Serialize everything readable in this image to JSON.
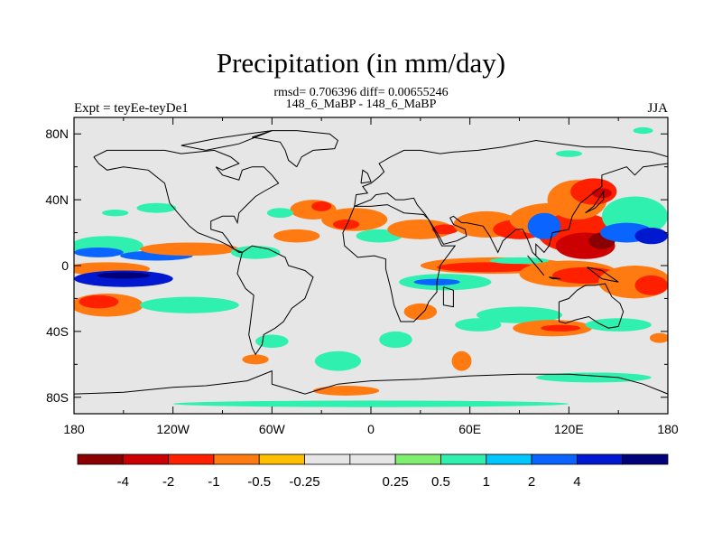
{
  "title": "Precipitation (in mm/day)",
  "stats_line": "rmsd= 0.706396 diff= 0.00655246",
  "comparison": "148_6_MaBP - 148_6_MaBP",
  "experiment": "Expt = teyEe-teyDe1",
  "season": "JJA",
  "map": {
    "lat_ticks": [
      "80N",
      "40N",
      "0",
      "40S",
      "80S"
    ],
    "lat_values": [
      80,
      40,
      0,
      -40,
      -80
    ],
    "lon_ticks": [
      "180",
      "120W",
      "60W",
      "0",
      "60E",
      "120E",
      "180"
    ],
    "lon_values": [
      -180,
      -120,
      -60,
      0,
      60,
      120,
      180
    ],
    "lat_range": [
      -90,
      90
    ],
    "lon_range": [
      -180,
      180
    ],
    "background_color": "#e6e6e6"
  },
  "colorbar": {
    "colors": [
      "#8b0000",
      "#cc0000",
      "#ff2000",
      "#ff7a10",
      "#ffbf00",
      "#e6e6e6",
      "#e6e6e6",
      "#80ee70",
      "#30f0b0",
      "#00c8ff",
      "#0a64ff",
      "#0018d0",
      "#00007a"
    ],
    "labels": [
      "-4",
      "-2",
      "-1",
      "-0.5",
      "-0.25",
      "0.25",
      "0.5",
      "1",
      "2",
      "4"
    ]
  },
  "anomaly_regions": [
    {
      "lon": -160,
      "lat": -2,
      "rx": 26,
      "ry": 4,
      "level": -0.5
    },
    {
      "lon": -160,
      "lat": 12,
      "rx": 22,
      "ry": 6,
      "level": 0.5
    },
    {
      "lon": -165,
      "lat": 8,
      "rx": 15,
      "ry": 3,
      "level": 1
    },
    {
      "lon": -150,
      "lat": -8,
      "rx": 30,
      "ry": 5,
      "level": 2
    },
    {
      "lon": -150,
      "lat": -6,
      "rx": 16,
      "ry": 2,
      "level": 4
    },
    {
      "lon": -130,
      "lat": 6,
      "rx": 22,
      "ry": 3,
      "level": 1
    },
    {
      "lon": -110,
      "lat": 10,
      "rx": 30,
      "ry": 4,
      "level": -0.5
    },
    {
      "lon": -160,
      "lat": -24,
      "rx": 22,
      "ry": 7,
      "level": -0.5
    },
    {
      "lon": -165,
      "lat": -22,
      "rx": 12,
      "ry": 4,
      "level": -1
    },
    {
      "lon": -110,
      "lat": -24,
      "rx": 30,
      "ry": 5,
      "level": 0.5
    },
    {
      "lon": -70,
      "lat": 8,
      "rx": 15,
      "ry": 4,
      "level": 0.5
    },
    {
      "lon": -45,
      "lat": 18,
      "rx": 14,
      "ry": 4,
      "level": -0.5
    },
    {
      "lon": -35,
      "lat": 34,
      "rx": 14,
      "ry": 6,
      "level": -0.5
    },
    {
      "lon": -30,
      "lat": 36,
      "rx": 6,
      "ry": 3,
      "level": -1
    },
    {
      "lon": -10,
      "lat": 28,
      "rx": 20,
      "ry": 7,
      "level": -0.5
    },
    {
      "lon": -15,
      "lat": 25,
      "rx": 8,
      "ry": 3,
      "level": -1
    },
    {
      "lon": 5,
      "lat": 18,
      "rx": 14,
      "ry": 4,
      "level": 0.5
    },
    {
      "lon": 30,
      "lat": 22,
      "rx": 20,
      "ry": 6,
      "level": -0.5
    },
    {
      "lon": 45,
      "lat": 22,
      "rx": 8,
      "ry": 3,
      "level": -1
    },
    {
      "lon": 70,
      "lat": 25,
      "rx": 20,
      "ry": 8,
      "level": -0.5
    },
    {
      "lon": 90,
      "lat": 22,
      "rx": 16,
      "ry": 6,
      "level": -1
    },
    {
      "lon": 110,
      "lat": 28,
      "rx": 26,
      "ry": 10,
      "level": -0.5
    },
    {
      "lon": 125,
      "lat": 20,
      "rx": 24,
      "ry": 12,
      "level": -1
    },
    {
      "lon": 130,
      "lat": 12,
      "rx": 18,
      "ry": 8,
      "level": -2
    },
    {
      "lon": 140,
      "lat": 15,
      "rx": 8,
      "ry": 5,
      "level": -4
    },
    {
      "lon": 125,
      "lat": 40,
      "rx": 18,
      "ry": 12,
      "level": -0.5
    },
    {
      "lon": 135,
      "lat": 45,
      "rx": 14,
      "ry": 8,
      "level": -1
    },
    {
      "lon": 140,
      "lat": 44,
      "rx": 6,
      "ry": 3,
      "level": -2
    },
    {
      "lon": 160,
      "lat": 30,
      "rx": 20,
      "ry": 12,
      "level": 0.5
    },
    {
      "lon": 155,
      "lat": 20,
      "rx": 16,
      "ry": 6,
      "level": 1
    },
    {
      "lon": 170,
      "lat": 18,
      "rx": 10,
      "ry": 5,
      "level": 2
    },
    {
      "lon": 105,
      "lat": 24,
      "rx": 10,
      "ry": 8,
      "level": 1
    },
    {
      "lon": 75,
      "lat": 0,
      "rx": 45,
      "ry": 5,
      "level": -0.5
    },
    {
      "lon": 70,
      "lat": -1,
      "rx": 30,
      "ry": 3,
      "level": -1
    },
    {
      "lon": 90,
      "lat": 3,
      "rx": 18,
      "ry": 2,
      "level": 0.5
    },
    {
      "lon": 120,
      "lat": -5,
      "rx": 30,
      "ry": 8,
      "level": -0.5
    },
    {
      "lon": 130,
      "lat": -6,
      "rx": 20,
      "ry": 5,
      "level": -1
    },
    {
      "lon": 160,
      "lat": -10,
      "rx": 22,
      "ry": 10,
      "level": -0.5
    },
    {
      "lon": 170,
      "lat": -12,
      "rx": 10,
      "ry": 6,
      "level": -1
    },
    {
      "lon": 45,
      "lat": -10,
      "rx": 28,
      "ry": 5,
      "level": 0.5
    },
    {
      "lon": 40,
      "lat": -10,
      "rx": 14,
      "ry": 2,
      "level": 1
    },
    {
      "lon": 30,
      "lat": -28,
      "rx": 10,
      "ry": 5,
      "level": -0.5
    },
    {
      "lon": 90,
      "lat": -30,
      "rx": 26,
      "ry": 5,
      "level": 0.5
    },
    {
      "lon": 110,
      "lat": -38,
      "rx": 24,
      "ry": 5,
      "level": -0.5
    },
    {
      "lon": 115,
      "lat": -38,
      "rx": 12,
      "ry": 2,
      "level": -1
    },
    {
      "lon": 150,
      "lat": -36,
      "rx": 20,
      "ry": 4,
      "level": 0.5
    },
    {
      "lon": 175,
      "lat": -44,
      "rx": 6,
      "ry": 3,
      "level": -0.5
    },
    {
      "lon": 65,
      "lat": -36,
      "rx": 14,
      "ry": 4,
      "level": 0.5
    },
    {
      "lon": 55,
      "lat": -58,
      "rx": 6,
      "ry": 6,
      "level": -0.5
    },
    {
      "lon": 15,
      "lat": -45,
      "rx": 10,
      "ry": 5,
      "level": 0.5
    },
    {
      "lon": -20,
      "lat": -58,
      "rx": 14,
      "ry": 6,
      "level": 0.5
    },
    {
      "lon": -70,
      "lat": -57,
      "rx": 8,
      "ry": 3,
      "level": -0.5
    },
    {
      "lon": -60,
      "lat": -46,
      "rx": 10,
      "ry": 4,
      "level": 0.5
    },
    {
      "lon": -15,
      "lat": -76,
      "rx": 20,
      "ry": 3,
      "level": -0.5
    },
    {
      "lon": 0,
      "lat": -84,
      "rx": 120,
      "ry": 2,
      "level": 0.5
    },
    {
      "lon": 135,
      "lat": -68,
      "rx": 35,
      "ry": 3,
      "level": 0.5
    },
    {
      "lon": -130,
      "lat": 35,
      "rx": 12,
      "ry": 3,
      "level": 0.5
    },
    {
      "lon": -155,
      "lat": 32,
      "rx": 8,
      "ry": 2,
      "level": 0.5
    },
    {
      "lon": -55,
      "lat": 32,
      "rx": 8,
      "ry": 3,
      "level": 0.5
    },
    {
      "lon": 165,
      "lat": 82,
      "rx": 6,
      "ry": 2,
      "level": 0.5
    },
    {
      "lon": 120,
      "lat": 68,
      "rx": 8,
      "ry": 2,
      "level": 0.5
    }
  ],
  "land_outlines": [
    [
      [
        -168,
        66
      ],
      [
        -160,
        70
      ],
      [
        -140,
        70
      ],
      [
        -125,
        70
      ],
      [
        -115,
        68
      ],
      [
        -95,
        70
      ],
      [
        -85,
        66
      ],
      [
        -80,
        62
      ],
      [
        -90,
        58
      ],
      [
        -94,
        60
      ],
      [
        -90,
        55
      ],
      [
        -80,
        52
      ],
      [
        -78,
        58
      ],
      [
        -72,
        60
      ],
      [
        -65,
        60
      ],
      [
        -60,
        55
      ],
      [
        -56,
        50
      ],
      [
        -65,
        45
      ],
      [
        -70,
        42
      ],
      [
        -76,
        36
      ],
      [
        -80,
        32
      ],
      [
        -81,
        26
      ],
      [
        -83,
        30
      ],
      [
        -90,
        30
      ],
      [
        -97,
        27
      ],
      [
        -97,
        22
      ],
      [
        -90,
        20
      ],
      [
        -87,
        16
      ],
      [
        -83,
        10
      ],
      [
        -78,
        8
      ],
      [
        -80,
        8
      ],
      [
        -86,
        12
      ],
      [
        -92,
        15
      ],
      [
        -105,
        20
      ],
      [
        -110,
        24
      ],
      [
        -117,
        32
      ],
      [
        -122,
        38
      ],
      [
        -124,
        46
      ],
      [
        -125,
        50
      ],
      [
        -135,
        58
      ],
      [
        -150,
        60
      ],
      [
        -160,
        58
      ],
      [
        -165,
        62
      ],
      [
        -168,
        66
      ]
    ],
    [
      [
        -78,
        8
      ],
      [
        -72,
        12
      ],
      [
        -62,
        10
      ],
      [
        -52,
        5
      ],
      [
        -50,
        0
      ],
      [
        -40,
        -3
      ],
      [
        -35,
        -7
      ],
      [
        -37,
        -12
      ],
      [
        -40,
        -20
      ],
      [
        -48,
        -26
      ],
      [
        -53,
        -34
      ],
      [
        -58,
        -38
      ],
      [
        -65,
        -42
      ],
      [
        -66,
        -48
      ],
      [
        -70,
        -54
      ],
      [
        -72,
        -50
      ],
      [
        -74,
        -42
      ],
      [
        -73,
        -34
      ],
      [
        -71,
        -18
      ],
      [
        -76,
        -14
      ],
      [
        -81,
        -5
      ],
      [
        -80,
        0
      ],
      [
        -78,
        8
      ]
    ],
    [
      [
        -10,
        36
      ],
      [
        0,
        36
      ],
      [
        10,
        37
      ],
      [
        20,
        32
      ],
      [
        32,
        31
      ],
      [
        35,
        28
      ],
      [
        43,
        12
      ],
      [
        51,
        12
      ],
      [
        42,
        0
      ],
      [
        40,
        -10
      ],
      [
        40,
        -16
      ],
      [
        35,
        -22
      ],
      [
        33,
        -27
      ],
      [
        26,
        -34
      ],
      [
        18,
        -34
      ],
      [
        14,
        -24
      ],
      [
        12,
        -14
      ],
      [
        9,
        -2
      ],
      [
        9,
        4
      ],
      [
        2,
        6
      ],
      [
        -8,
        5
      ],
      [
        -16,
        12
      ],
      [
        -17,
        20
      ],
      [
        -14,
        26
      ],
      [
        -10,
        36
      ]
    ],
    [
      [
        -10,
        36
      ],
      [
        -9,
        43
      ],
      [
        -2,
        44
      ],
      [
        -5,
        48
      ],
      [
        0,
        50
      ],
      [
        5,
        54
      ],
      [
        8,
        57
      ],
      [
        5,
        62
      ],
      [
        12,
        66
      ],
      [
        20,
        70
      ],
      [
        30,
        70
      ],
      [
        42,
        68
      ],
      [
        50,
        69
      ],
      [
        65,
        70
      ],
      [
        80,
        72
      ],
      [
        100,
        76
      ],
      [
        115,
        74
      ],
      [
        130,
        72
      ],
      [
        145,
        72
      ],
      [
        160,
        70
      ],
      [
        170,
        69
      ],
      [
        180,
        66
      ],
      [
        180,
        62
      ],
      [
        165,
        60
      ],
      [
        160,
        55
      ],
      [
        155,
        60
      ],
      [
        140,
        55
      ],
      [
        140,
        48
      ],
      [
        132,
        42
      ],
      [
        127,
        38
      ],
      [
        122,
        30
      ],
      [
        120,
        22
      ],
      [
        110,
        20
      ],
      [
        108,
        12
      ],
      [
        105,
        8
      ],
      [
        100,
        13
      ],
      [
        100,
        6
      ],
      [
        104,
        2
      ],
      [
        98,
        8
      ],
      [
        95,
        16
      ],
      [
        92,
        22
      ],
      [
        88,
        22
      ],
      [
        80,
        15
      ],
      [
        77,
        8
      ],
      [
        72,
        18
      ],
      [
        68,
        24
      ],
      [
        58,
        26
      ],
      [
        55,
        26
      ],
      [
        50,
        30
      ],
      [
        48,
        29
      ],
      [
        50,
        25
      ],
      [
        57,
        22
      ],
      [
        58,
        18
      ],
      [
        52,
        15
      ],
      [
        44,
        13
      ],
      [
        40,
        20
      ],
      [
        35,
        28
      ],
      [
        33,
        31
      ],
      [
        28,
        37
      ],
      [
        26,
        41
      ],
      [
        20,
        40
      ],
      [
        15,
        40
      ],
      [
        10,
        44
      ],
      [
        3,
        43
      ],
      [
        0,
        40
      ],
      [
        -10,
        36
      ]
    ],
    [
      [
        114,
        -22
      ],
      [
        114,
        -34
      ],
      [
        118,
        -35
      ],
      [
        124,
        -33
      ],
      [
        132,
        -31
      ],
      [
        138,
        -35
      ],
      [
        144,
        -38
      ],
      [
        150,
        -37
      ],
      [
        153,
        -28
      ],
      [
        151,
        -23
      ],
      [
        146,
        -19
      ],
      [
        142,
        -11
      ],
      [
        136,
        -12
      ],
      [
        130,
        -12
      ],
      [
        125,
        -15
      ],
      [
        120,
        -20
      ],
      [
        114,
        -22
      ]
    ],
    [
      [
        -45,
        60
      ],
      [
        -42,
        66
      ],
      [
        -35,
        70
      ],
      [
        -22,
        71
      ],
      [
        -20,
        76
      ],
      [
        -25,
        80
      ],
      [
        -45,
        82
      ],
      [
        -60,
        82
      ],
      [
        -72,
        78
      ],
      [
        -55,
        75
      ],
      [
        -52,
        70
      ],
      [
        -50,
        64
      ],
      [
        -45,
        60
      ]
    ],
    [
      [
        -180,
        -78
      ],
      [
        -150,
        -77
      ],
      [
        -120,
        -74
      ],
      [
        -100,
        -73
      ],
      [
        -75,
        -70
      ],
      [
        -60,
        -64
      ],
      [
        -60,
        -72
      ],
      [
        -40,
        -78
      ],
      [
        -20,
        -72
      ],
      [
        0,
        -70
      ],
      [
        30,
        -69
      ],
      [
        60,
        -67
      ],
      [
        90,
        -66
      ],
      [
        120,
        -66
      ],
      [
        150,
        -68
      ],
      [
        165,
        -72
      ],
      [
        180,
        -78
      ]
    ],
    [
      [
        44,
        -13
      ],
      [
        50,
        -15
      ],
      [
        50,
        -25
      ],
      [
        44,
        -24
      ],
      [
        44,
        -13
      ]
    ],
    [
      [
        95,
        6
      ],
      [
        105,
        -6
      ],
      [
        100,
        0
      ],
      [
        95,
        6
      ]
    ],
    [
      [
        110,
        -8
      ],
      [
        115,
        -8
      ],
      [
        108,
        -7
      ],
      [
        110,
        -8
      ]
    ],
    [
      [
        -6,
        50
      ],
      [
        0,
        51
      ],
      [
        -2,
        56
      ],
      [
        -5,
        58
      ],
      [
        -6,
        50
      ]
    ],
    [
      [
        131,
        -1
      ],
      [
        140,
        -3
      ],
      [
        150,
        -10
      ],
      [
        140,
        -8
      ],
      [
        131,
        -1
      ]
    ],
    [
      [
        130,
        32
      ],
      [
        136,
        35
      ],
      [
        141,
        40
      ],
      [
        141,
        45
      ],
      [
        135,
        36
      ],
      [
        130,
        32
      ]
    ],
    [
      [
        -115,
        73
      ],
      [
        -95,
        77
      ],
      [
        -75,
        80
      ],
      [
        -60,
        82
      ],
      [
        -80,
        74
      ],
      [
        -100,
        70
      ],
      [
        -115,
        73
      ]
    ]
  ]
}
